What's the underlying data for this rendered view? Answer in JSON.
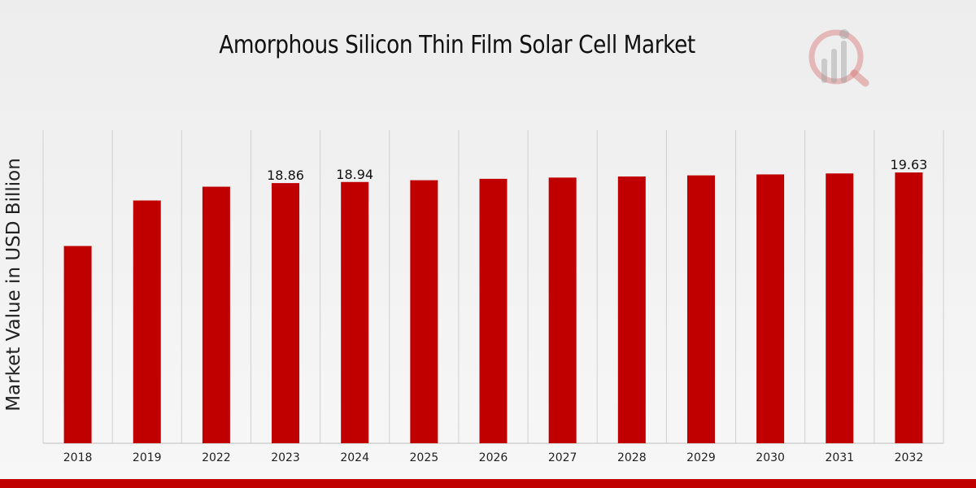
{
  "chart_data": {
    "type": "bar",
    "title": "Amorphous Silicon Thin Film Solar Cell Market",
    "ylabel": "Market Value in USD Billion",
    "xlabel": "",
    "categories": [
      "2018",
      "2019",
      "2022",
      "2023",
      "2024",
      "2025",
      "2026",
      "2027",
      "2028",
      "2029",
      "2030",
      "2031",
      "2032"
    ],
    "values": [
      14.3,
      17.6,
      18.6,
      18.86,
      18.94,
      19.07,
      19.17,
      19.26,
      19.34,
      19.42,
      19.49,
      19.56,
      19.63
    ],
    "data_labels": [
      {
        "category": "2023",
        "text": "18.86"
      },
      {
        "category": "2024",
        "text": "18.94"
      },
      {
        "category": "2032",
        "text": "19.63"
      }
    ],
    "ylim": [
      0,
      22.7
    ],
    "grid": "vertical",
    "bar_color": "#c00000"
  },
  "colors": {
    "footer": "#c00000",
    "logo": "#c00000"
  }
}
